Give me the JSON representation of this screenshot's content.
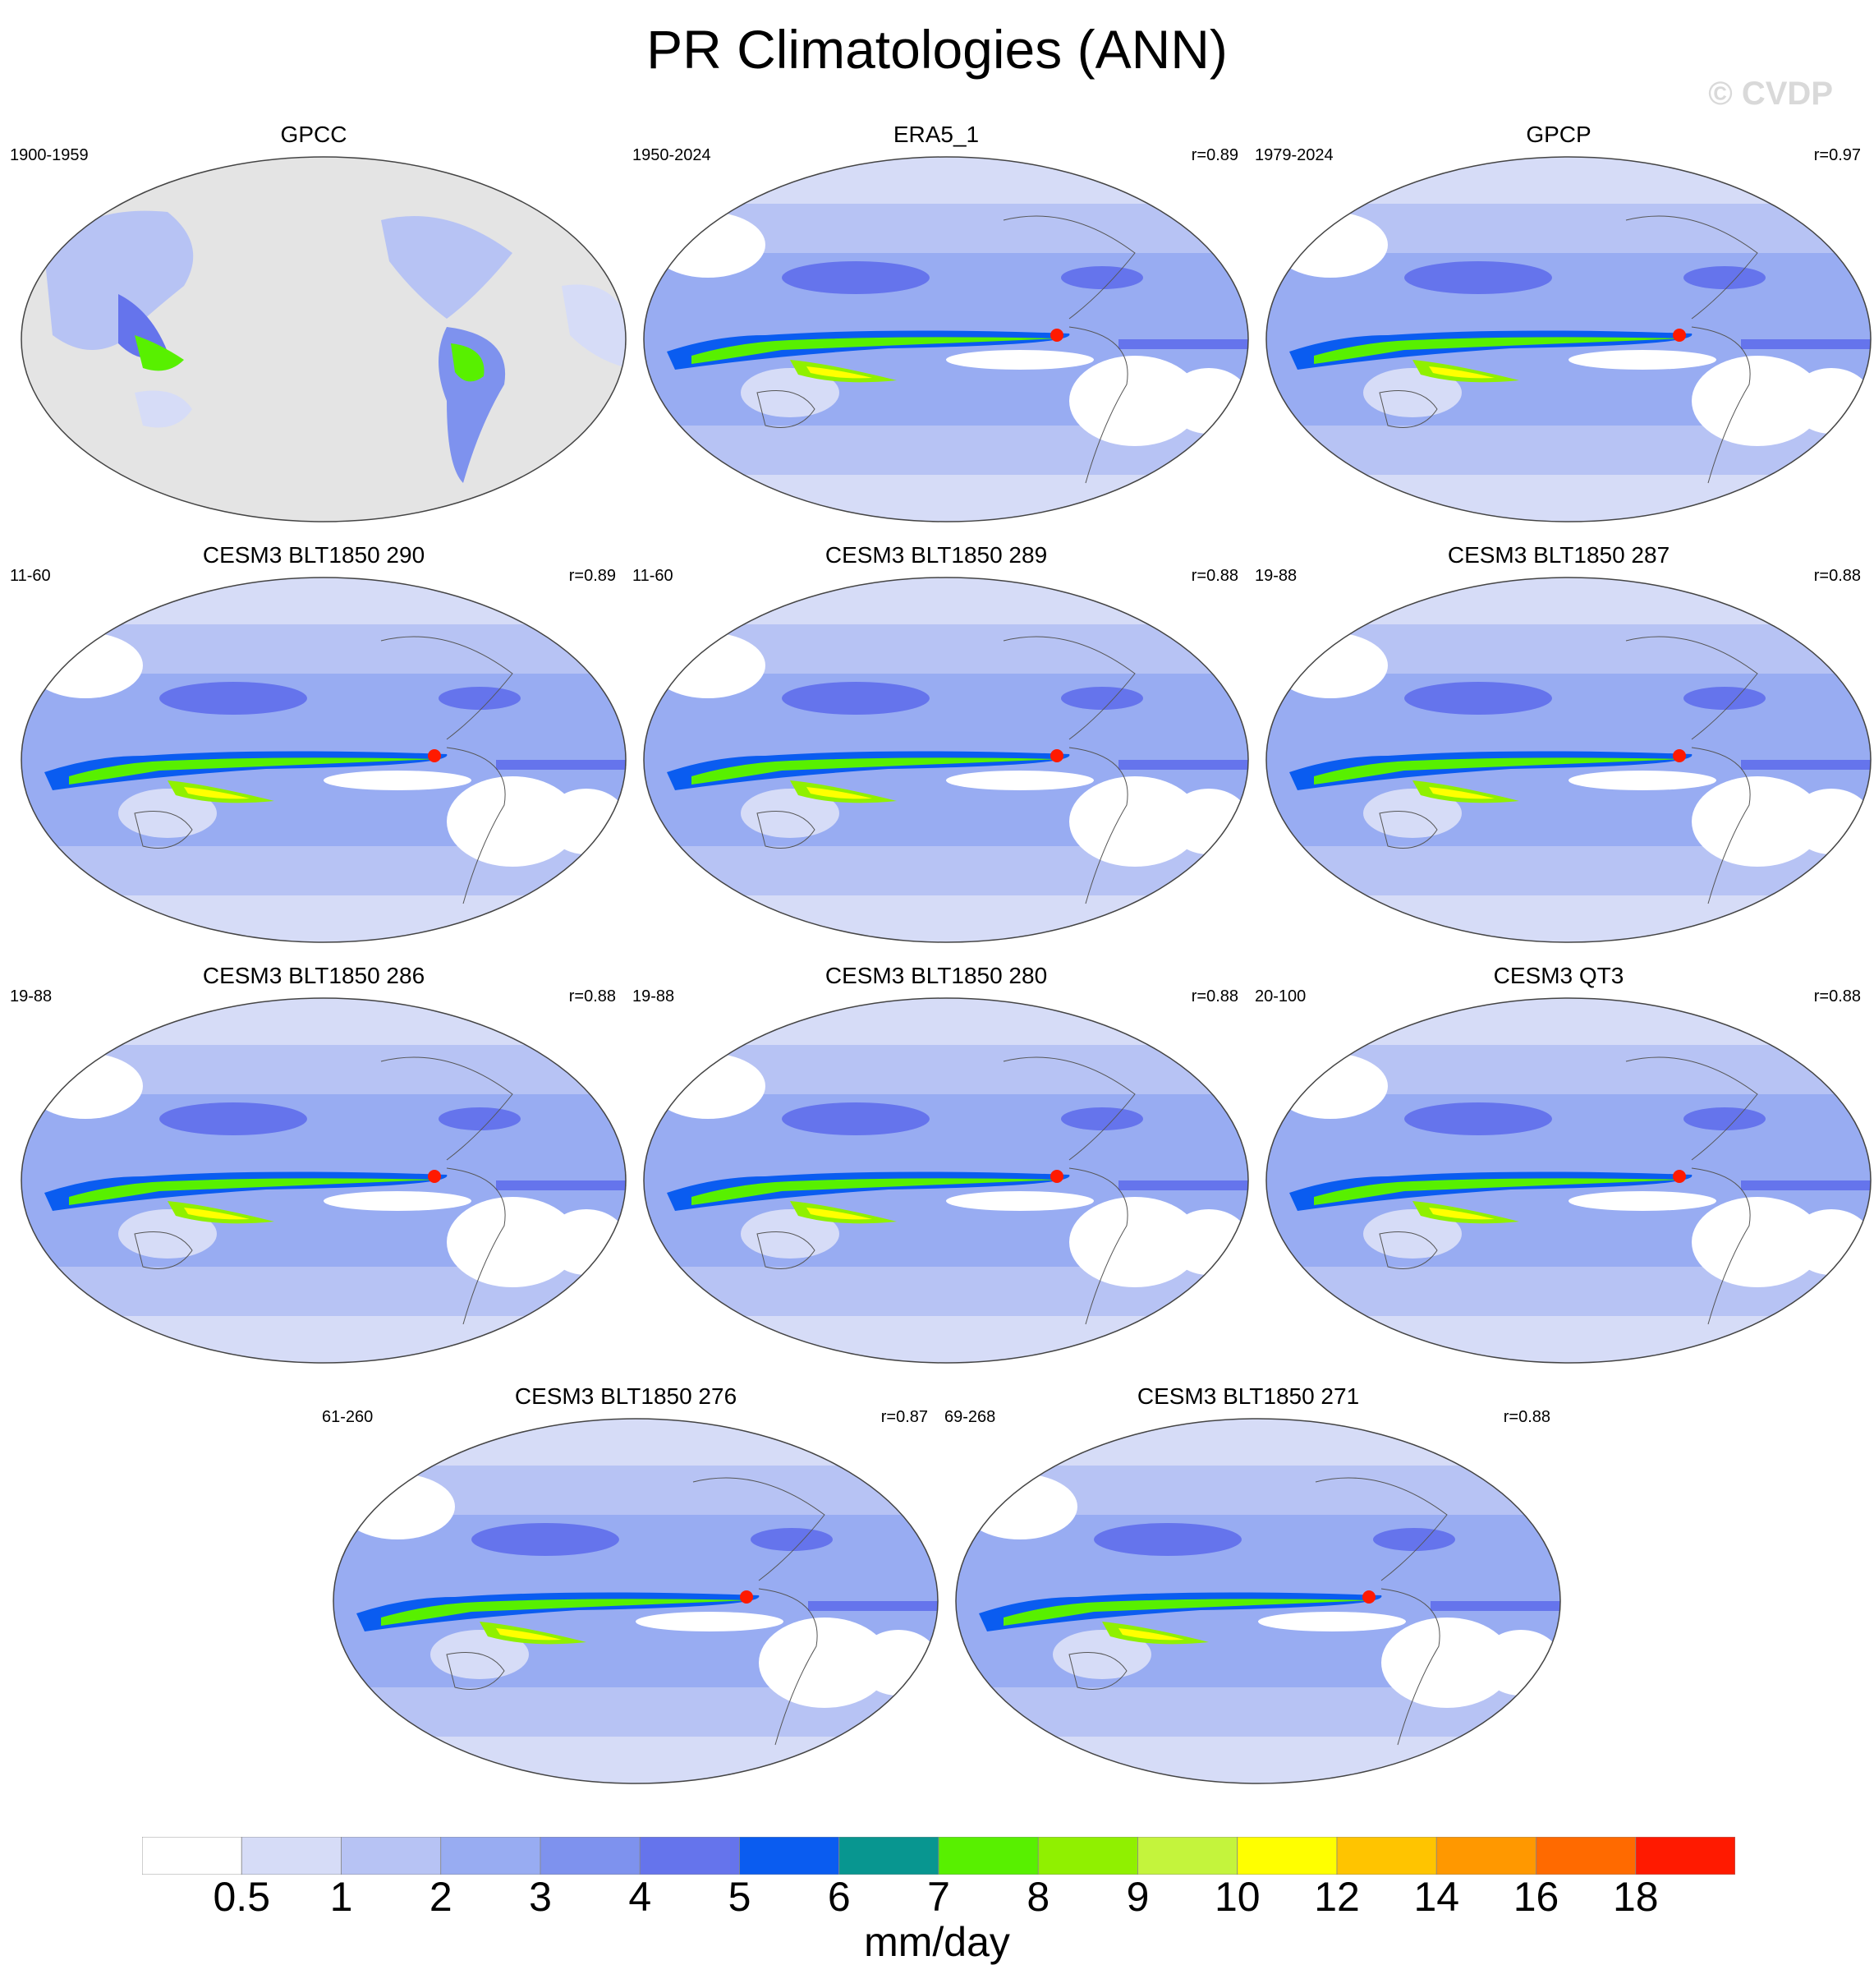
{
  "title": "PR Climatologies (ANN)",
  "watermark": "© CVDP",
  "panels": [
    {
      "title": "GPCC",
      "left": "1900-1959",
      "right": "",
      "obs": true
    },
    {
      "title": "ERA5_1",
      "left": "1950-2024",
      "right": "r=0.89"
    },
    {
      "title": "GPCP",
      "left": "1979-2024",
      "right": "r=0.97"
    },
    {
      "title": "CESM3 BLT1850 290",
      "left": "11-60",
      "right": "r=0.89"
    },
    {
      "title": "CESM3 BLT1850 289",
      "left": "11-60",
      "right": "r=0.88"
    },
    {
      "title": "CESM3 BLT1850 287",
      "left": "19-88",
      "right": "r=0.88"
    },
    {
      "title": "CESM3 BLT1850 286",
      "left": "19-88",
      "right": "r=0.88"
    },
    {
      "title": "CESM3 BLT1850 280",
      "left": "19-88",
      "right": "r=0.88"
    },
    {
      "title": "CESM3 QT3",
      "left": "20-100",
      "right": "r=0.88"
    },
    {
      "title": "CESM3 BLT1850 276",
      "left": "61-260",
      "right": "r=0.87"
    },
    {
      "title": "CESM3 BLT1850 271",
      "left": "69-268",
      "right": "r=0.88"
    }
  ],
  "colorbar": {
    "units": "mm/day",
    "ticks": [
      "0.5",
      "1",
      "2",
      "3",
      "4",
      "5",
      "6",
      "7",
      "8",
      "9",
      "10",
      "12",
      "14",
      "16",
      "18"
    ],
    "colors": [
      "#ffffff",
      "#d6dcf7",
      "#b7c3f4",
      "#98acf2",
      "#7e92ee",
      "#6574ec",
      "#0a5cf0",
      "#089690",
      "#58f000",
      "#90f000",
      "#c4f43c",
      "#ffff00",
      "#ffc400",
      "#ff9800",
      "#ff6a00",
      "#ff1a00"
    ]
  }
}
